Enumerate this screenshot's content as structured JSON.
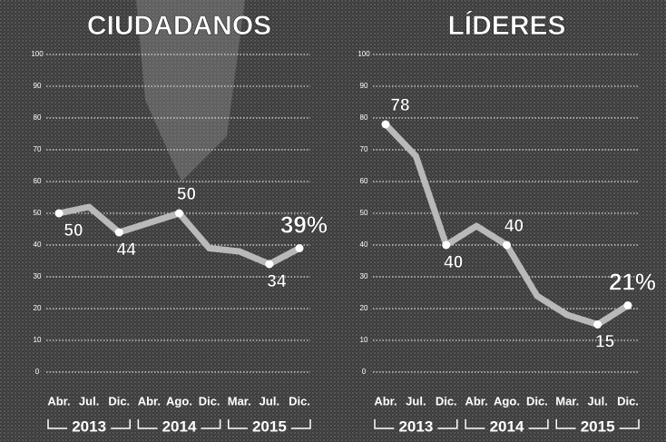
{
  "chart_data": [
    {
      "type": "line",
      "title": "CIUDADANOS",
      "categories": [
        "Abr.",
        "Jul.",
        "Dic.",
        "Abr.",
        "Ago.",
        "Dic.",
        "Mar.",
        "Jul.",
        "Dic."
      ],
      "year_labels": [
        "2013",
        "2014",
        "2015"
      ],
      "values": [
        50,
        52,
        44,
        47,
        50,
        39,
        38,
        34,
        39
      ],
      "value_labels": [
        "50",
        null,
        "44",
        null,
        "50",
        null,
        null,
        "34",
        "39%"
      ],
      "color": "#b9b9b9",
      "ylim": [
        0,
        100
      ],
      "yticks": [
        0,
        10,
        20,
        30,
        40,
        50,
        60,
        70,
        80,
        90,
        100
      ],
      "grid": true
    },
    {
      "type": "line",
      "title": "LÍDERES",
      "categories": [
        "Abr.",
        "Jul.",
        "Dic.",
        "Abr.",
        "Ago.",
        "Dic.",
        "Mar.",
        "Jul.",
        "Dic."
      ],
      "year_labels": [
        "2013",
        "2014",
        "2015"
      ],
      "values": [
        78,
        68,
        40,
        46,
        40,
        24,
        18,
        15,
        21
      ],
      "value_labels": [
        "78",
        null,
        "40",
        null,
        "40",
        null,
        null,
        "15",
        "21%"
      ],
      "color": "#b9b9b9",
      "ylim": [
        0,
        100
      ],
      "yticks": [
        0,
        10,
        20,
        30,
        40,
        50,
        60,
        70,
        80,
        90,
        100
      ],
      "grid": true
    }
  ]
}
